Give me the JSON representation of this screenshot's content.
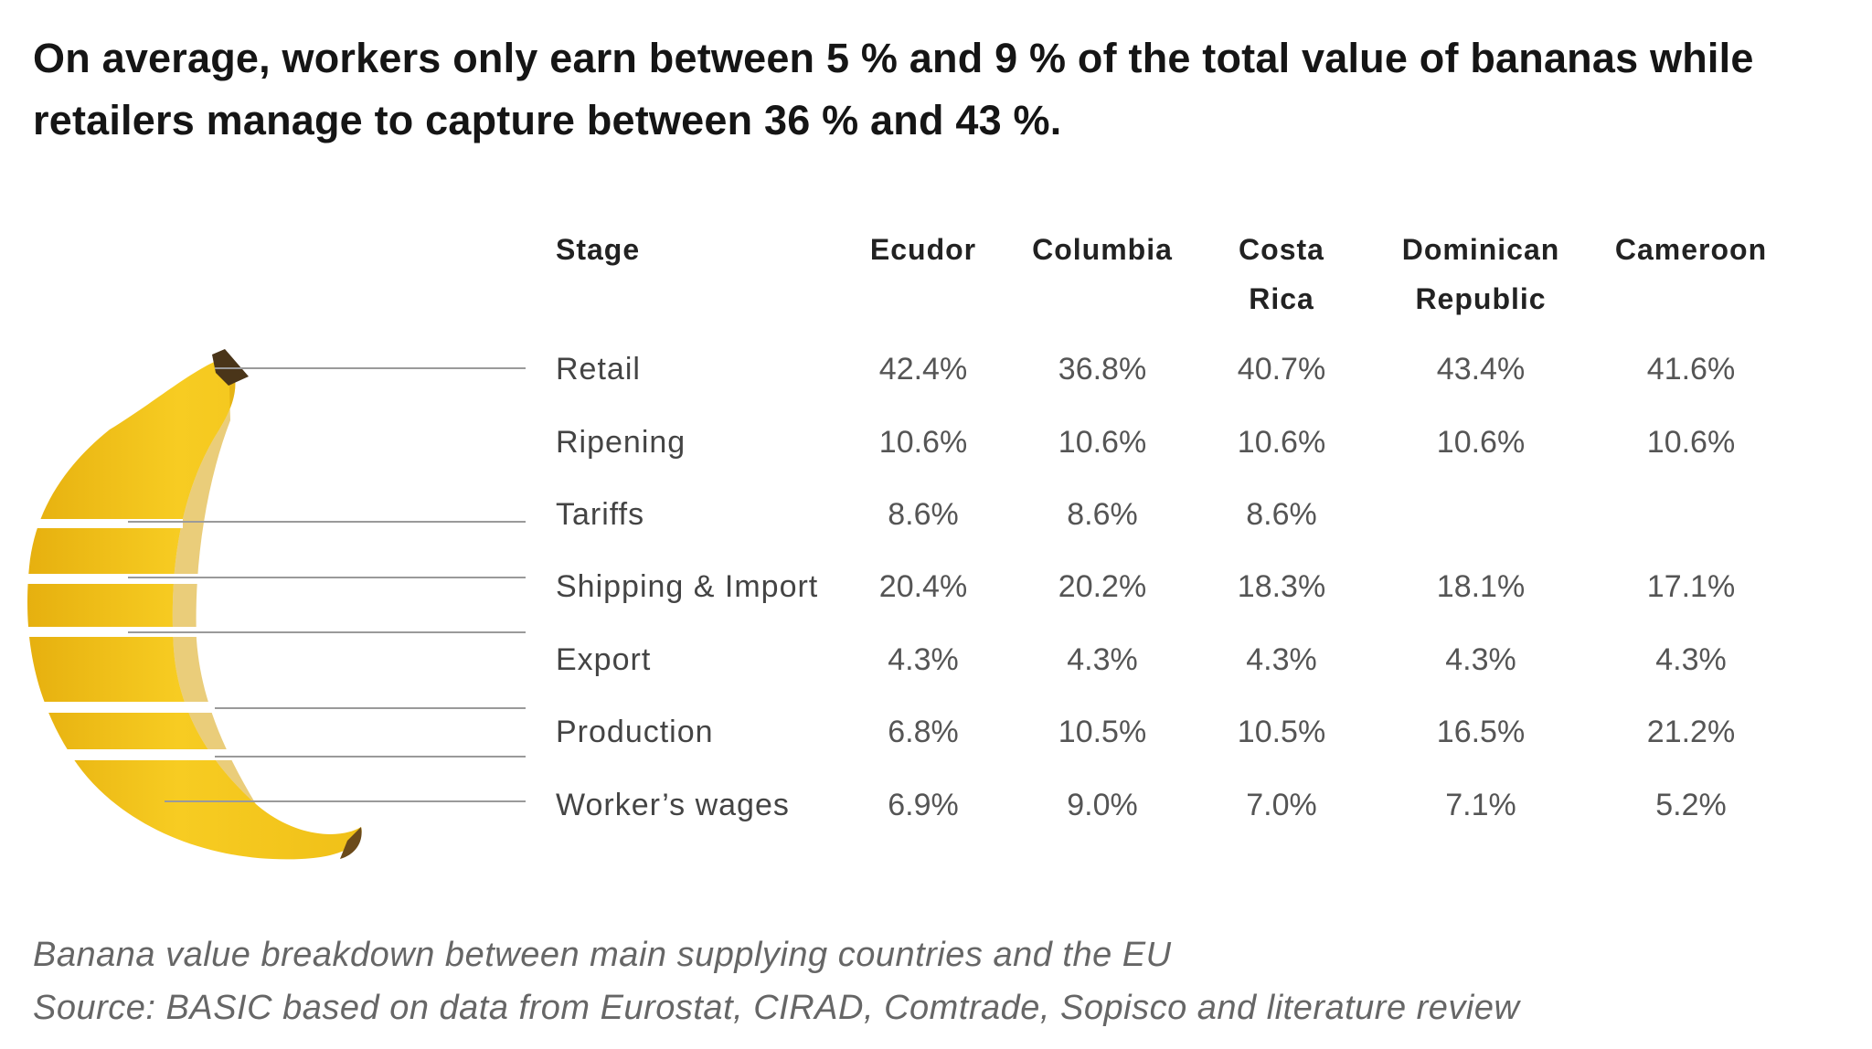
{
  "headline": {
    "line1": "On average, workers only earn between 5 % and 9 % of the total value of bananas while",
    "line2": "retailers manage to capture between 36 % and 43 %."
  },
  "table": {
    "stage_header": "Stage",
    "country_headers": [
      {
        "line1": "Ecudor",
        "line2": ""
      },
      {
        "line1": "Columbia",
        "line2": ""
      },
      {
        "line1": "Costa",
        "line2": "Rica"
      },
      {
        "line1": "Dominican",
        "line2": "Republic"
      },
      {
        "line1": "Cameroon",
        "line2": ""
      }
    ]
  },
  "chart_data": {
    "type": "table",
    "title": "On average, workers only earn between 5 % and 9 % of the total value of bananas while retailers manage to capture between 36 % and 43 %.",
    "columns": [
      "Ecudor",
      "Columbia",
      "Costa Rica",
      "Dominican Republic",
      "Cameroon"
    ],
    "rows": [
      {
        "stage": "Retail",
        "values": [
          "42.4%",
          "36.8%",
          "40.7%",
          "43.4%",
          "41.6%"
        ]
      },
      {
        "stage": "Ripening",
        "values": [
          "10.6%",
          "10.6%",
          "10.6%",
          "10.6%",
          "10.6%"
        ]
      },
      {
        "stage": "Tariffs",
        "values": [
          "8.6%",
          "8.6%",
          "8.6%",
          "",
          ""
        ]
      },
      {
        "stage": "Shipping & Import",
        "values": [
          "20.4%",
          "20.2%",
          "18.3%",
          "18.1%",
          "17.1%"
        ]
      },
      {
        "stage": "Export",
        "values": [
          "4.3%",
          "4.3%",
          "4.3%",
          "4.3%",
          "4.3%"
        ]
      },
      {
        "stage": "Production",
        "values": [
          "6.8%",
          "10.5%",
          "10.5%",
          "16.5%",
          "21.2%"
        ]
      },
      {
        "stage": "Worker’s wages",
        "values": [
          "6.9%",
          "9.0%",
          "7.0%",
          "7.1%",
          "5.2%"
        ]
      }
    ]
  },
  "caption": {
    "line1": "Banana value breakdown between main supplying countries and the EU",
    "line2": "Source: BASIC based on data from Eurostat, CIRAD, Comtrade, Sopisco and literature review"
  },
  "colors": {
    "banana": "#f2c318",
    "banana_shadow": "#d9a40c",
    "stem": "#4a3519",
    "leader": "#9a9a9a"
  },
  "icons": {
    "illustration": "banana-illustration"
  }
}
